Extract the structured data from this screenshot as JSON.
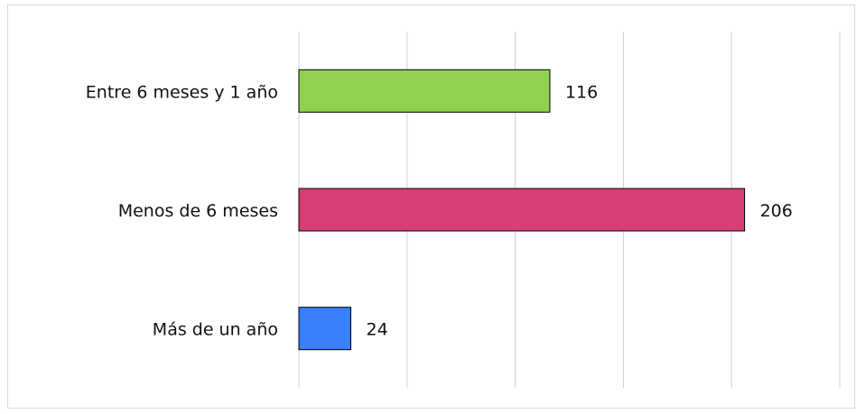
{
  "chart_data": {
    "type": "bar",
    "orientation": "horizontal",
    "categories": [
      "Entre 6 meses y 1 año",
      "Menos de 6 meses",
      "Más de un año"
    ],
    "values": [
      116,
      206,
      24
    ],
    "colors": [
      "#92d050",
      "#d63e75",
      "#3a7ffc"
    ],
    "xlim": [
      0,
      250
    ],
    "xticks": [
      0,
      50,
      100,
      150,
      200,
      250
    ],
    "grid": true
  }
}
